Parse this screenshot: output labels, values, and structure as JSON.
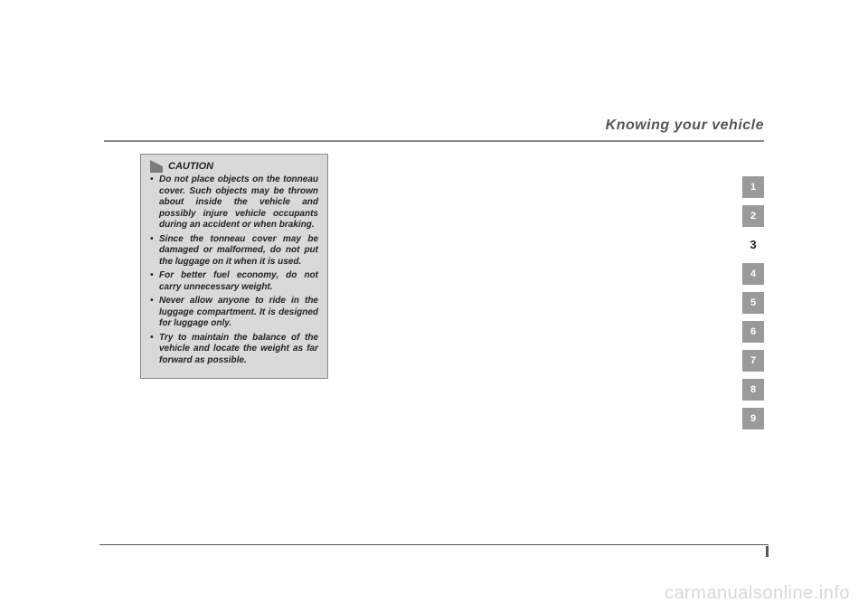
{
  "header": {
    "title": "Knowing your vehicle"
  },
  "caution": {
    "label": "CAUTION",
    "items": [
      "Do not place objects on the tonneau cover. Such objects may be thrown about inside the vehicle and possibly injure vehicle occupants during an accident or when braking.",
      "Since the tonneau cover may be damaged or malformed, do not put the luggage on it when it is used.",
      "For better fuel economy, do not carry unnecessary weight.",
      "Never allow anyone to ride in the luggage compartment. It is designed for luggage only.",
      "Try to maintain the balance of the vehicle and locate the weight as far forward as possible."
    ]
  },
  "tabs": {
    "items": [
      "1",
      "2",
      "3",
      "4",
      "5",
      "6",
      "7",
      "8",
      "9"
    ],
    "current_index": 2,
    "filled_color": "#9a9a9a",
    "text_color_filled": "#ffffff",
    "text_color_current": "#222222"
  },
  "watermark": "carmanualsonline.info",
  "colors": {
    "page_bg": "#ffffff",
    "box_bg": "#d9d9d9",
    "box_border": "#888888",
    "rule": "#555555",
    "header_text": "#555555"
  }
}
